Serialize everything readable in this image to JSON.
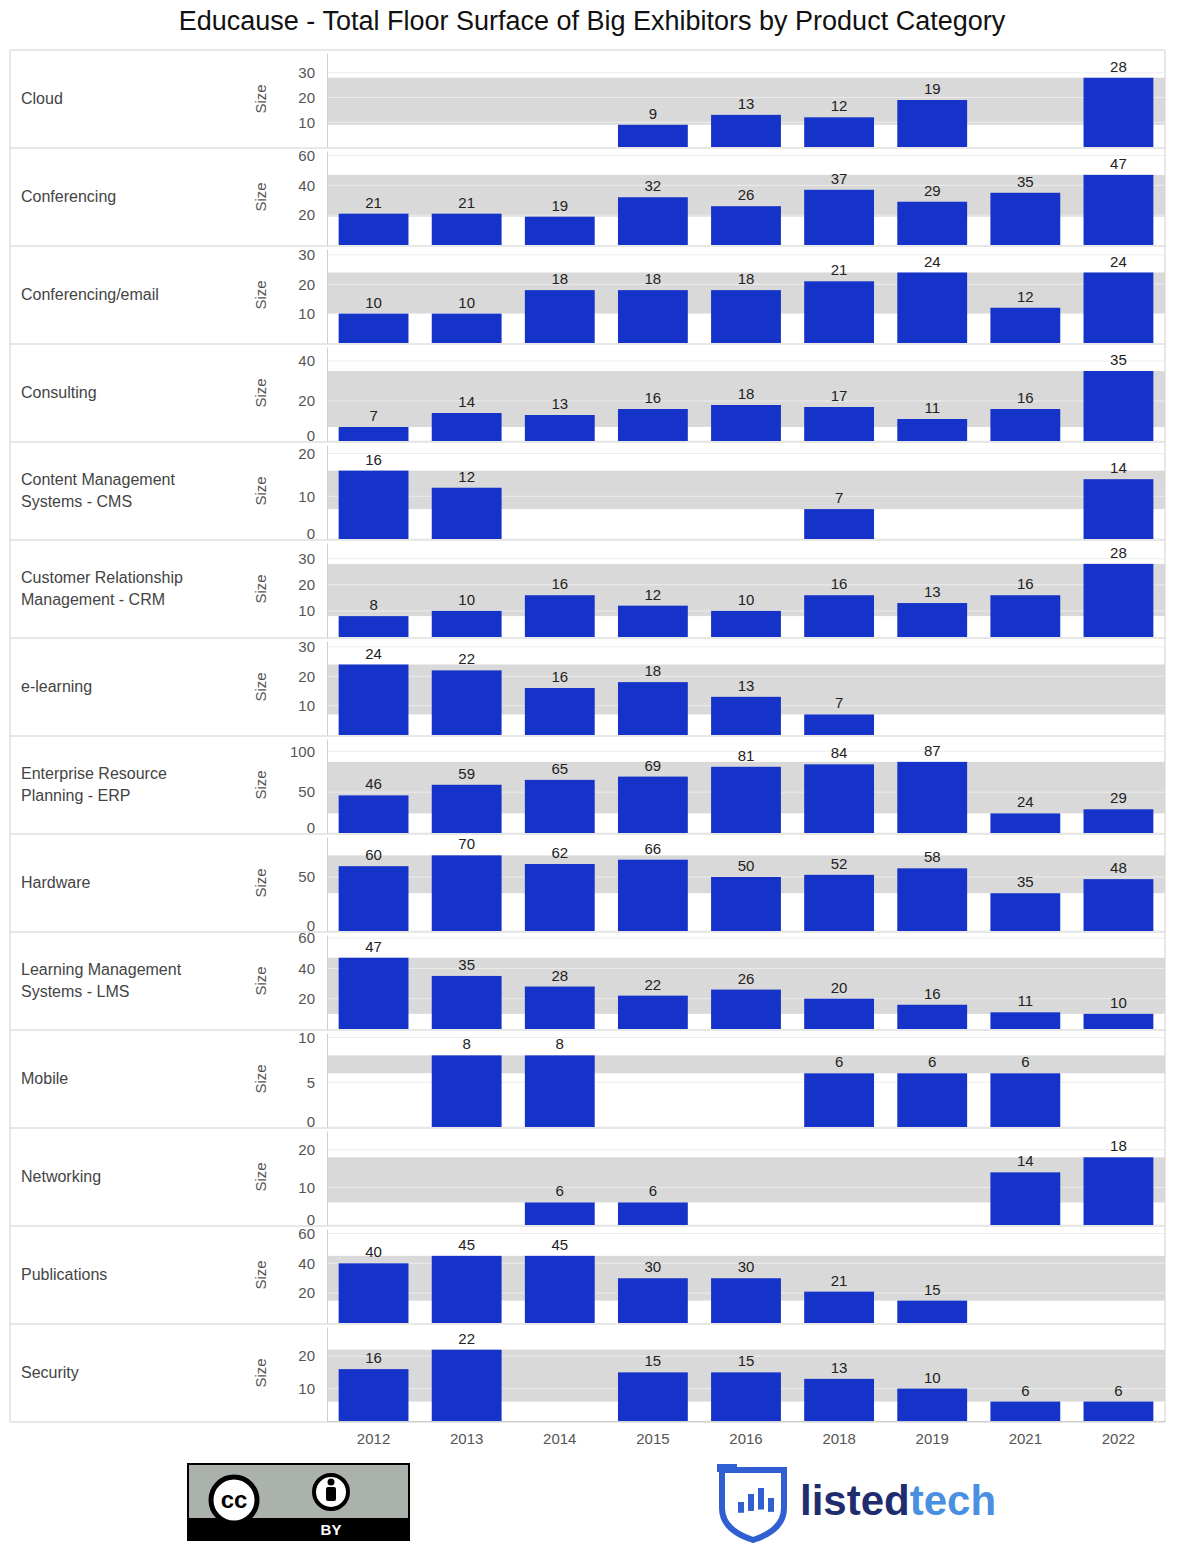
{
  "title": "Educause - Total Floor Surface of Big Exhibitors by Product Category",
  "chart_data": [
    {
      "type": "bar",
      "title": "Cloud",
      "ylabel": "Size",
      "categories": [
        "2012",
        "2013",
        "2014",
        "2015",
        "2016",
        "2018",
        "2019",
        "2021",
        "2022"
      ],
      "values": [
        null,
        null,
        null,
        9,
        13,
        12,
        19,
        null,
        28
      ],
      "color": "#1533c8",
      "ylim": [
        0,
        38
      ],
      "yticks": [
        10,
        20,
        30
      ],
      "data_labels": true,
      "grid": true,
      "tick_labels": "y"
    },
    {
      "type": "bar",
      "title": "Conferencing",
      "ylabel": "Size",
      "categories": [
        "2012",
        "2013",
        "2014",
        "2015",
        "2016",
        "2018",
        "2019",
        "2021",
        "2022"
      ],
      "values": [
        21,
        21,
        19,
        32,
        26,
        37,
        29,
        35,
        47
      ],
      "color": "#1533c8",
      "ylim": [
        0,
        63
      ],
      "yticks": [
        20,
        40,
        60
      ],
      "data_labels": true,
      "grid": true,
      "tick_labels": "y"
    },
    {
      "type": "bar",
      "title": "Conferencing/email",
      "ylabel": "Size",
      "categories": [
        "2012",
        "2013",
        "2014",
        "2015",
        "2016",
        "2018",
        "2019",
        "2021",
        "2022"
      ],
      "values": [
        10,
        10,
        18,
        18,
        18,
        21,
        24,
        12,
        24
      ],
      "color": "#1533c8",
      "ylim": [
        0,
        32
      ],
      "yticks": [
        10,
        20,
        30
      ],
      "data_labels": true,
      "grid": true,
      "tick_labels": "y"
    },
    {
      "type": "bar",
      "title": "Consulting",
      "ylabel": "Size",
      "categories": [
        "2012",
        "2013",
        "2014",
        "2015",
        "2016",
        "2018",
        "2019",
        "2021",
        "2022"
      ],
      "values": [
        7,
        14,
        13,
        16,
        18,
        17,
        11,
        16,
        35
      ],
      "color": "#1533c8",
      "ylim": [
        0,
        47
      ],
      "yticks": [
        0,
        20,
        40
      ],
      "data_labels": true,
      "grid": true,
      "tick_labels": "y"
    },
    {
      "type": "bar",
      "title": "Content Management Systems - CMS",
      "ylabel": "Size",
      "categories": [
        "2012",
        "2013",
        "2014",
        "2015",
        "2016",
        "2018",
        "2019",
        "2021",
        "2022"
      ],
      "values": [
        16,
        12,
        null,
        null,
        null,
        7,
        null,
        null,
        14
      ],
      "color": "#1533c8",
      "ylim": [
        0,
        22
      ],
      "yticks": [
        0,
        10,
        20
      ],
      "data_labels": true,
      "grid": true,
      "tick_labels": "y"
    },
    {
      "type": "bar",
      "title": "Customer Relationship Management - CRM",
      "ylabel": "Size",
      "categories": [
        "2012",
        "2013",
        "2014",
        "2015",
        "2016",
        "2018",
        "2019",
        "2021",
        "2022"
      ],
      "values": [
        8,
        10,
        16,
        12,
        10,
        16,
        13,
        16,
        28
      ],
      "color": "#1533c8",
      "ylim": [
        0,
        36
      ],
      "yticks": [
        10,
        20,
        30
      ],
      "data_labels": true,
      "grid": true,
      "tick_labels": "y"
    },
    {
      "type": "bar",
      "title": "e-learning",
      "ylabel": "Size",
      "categories": [
        "2012",
        "2013",
        "2014",
        "2015",
        "2016",
        "2018",
        "2019",
        "2021",
        "2022"
      ],
      "values": [
        24,
        22,
        16,
        18,
        13,
        7,
        null,
        null,
        null
      ],
      "color": "#1533c8",
      "ylim": [
        0,
        32
      ],
      "yticks": [
        10,
        20,
        30
      ],
      "data_labels": true,
      "grid": true,
      "tick_labels": "y"
    },
    {
      "type": "bar",
      "title": "Enterprise Resource Planning - ERP",
      "ylabel": "Size",
      "categories": [
        "2012",
        "2013",
        "2014",
        "2015",
        "2016",
        "2018",
        "2019",
        "2021",
        "2022"
      ],
      "values": [
        46,
        59,
        65,
        69,
        81,
        84,
        87,
        24,
        29
      ],
      "color": "#1533c8",
      "ylim": [
        0,
        115
      ],
      "yticks": [
        0,
        50,
        100
      ],
      "data_labels": true,
      "grid": true,
      "tick_labels": "y"
    },
    {
      "type": "bar",
      "title": "Hardware",
      "ylabel": "Size",
      "categories": [
        "2012",
        "2013",
        "2014",
        "2015",
        "2016",
        "2018",
        "2019",
        "2021",
        "2022"
      ],
      "values": [
        60,
        70,
        62,
        66,
        50,
        52,
        58,
        35,
        48
      ],
      "color": "#1533c8",
      "ylim": [
        0,
        87
      ],
      "yticks": [
        0,
        50
      ],
      "data_labels": true,
      "grid": true,
      "tick_labels": "y"
    },
    {
      "type": "bar",
      "title": "Learning Management Systems - LMS",
      "ylabel": "Size",
      "categories": [
        "2012",
        "2013",
        "2014",
        "2015",
        "2016",
        "2018",
        "2019",
        "2021",
        "2022"
      ],
      "values": [
        47,
        35,
        28,
        22,
        26,
        20,
        16,
        11,
        10
      ],
      "color": "#1533c8",
      "ylim": [
        0,
        62
      ],
      "yticks": [
        20,
        40,
        60
      ],
      "data_labels": true,
      "grid": true,
      "tick_labels": "y"
    },
    {
      "type": "bar",
      "title": "Mobile",
      "ylabel": "Size",
      "categories": [
        "2012",
        "2013",
        "2014",
        "2015",
        "2016",
        "2018",
        "2019",
        "2021",
        "2022"
      ],
      "values": [
        null,
        8,
        8,
        null,
        null,
        6,
        6,
        6,
        null
      ],
      "color": "#1533c8",
      "ylim": [
        0,
        10.5
      ],
      "yticks": [
        0,
        5,
        10
      ],
      "data_labels": true,
      "grid": true,
      "tick_labels": "y"
    },
    {
      "type": "bar",
      "title": "Networking",
      "ylabel": "Size",
      "categories": [
        "2012",
        "2013",
        "2014",
        "2015",
        "2016",
        "2018",
        "2019",
        "2021",
        "2022"
      ],
      "values": [
        null,
        null,
        6,
        6,
        null,
        null,
        null,
        14,
        18
      ],
      "color": "#1533c8",
      "ylim": [
        0,
        25
      ],
      "yticks": [
        0,
        10,
        20
      ],
      "data_labels": true,
      "grid": true,
      "tick_labels": "y"
    },
    {
      "type": "bar",
      "title": "Publications",
      "ylabel": "Size",
      "categories": [
        "2012",
        "2013",
        "2014",
        "2015",
        "2016",
        "2018",
        "2019",
        "2021",
        "2022"
      ],
      "values": [
        40,
        45,
        45,
        30,
        30,
        21,
        15,
        null,
        null
      ],
      "color": "#1533c8",
      "ylim": [
        0,
        63
      ],
      "yticks": [
        20,
        40,
        60
      ],
      "data_labels": true,
      "grid": true,
      "tick_labels": "y"
    },
    {
      "type": "bar",
      "title": "Security",
      "ylabel": "Size",
      "categories": [
        "2012",
        "2013",
        "2014",
        "2015",
        "2016",
        "2018",
        "2019",
        "2021",
        "2022"
      ],
      "values": [
        16,
        22,
        null,
        15,
        15,
        13,
        10,
        6,
        6
      ],
      "color": "#1533c8",
      "ylim": [
        0,
        29
      ],
      "yticks": [
        10,
        20
      ],
      "data_labels": true,
      "grid": true,
      "tick_labels": true
    }
  ],
  "credits": {
    "license_icon": "cc",
    "license": "BY",
    "brand": [
      "listed",
      "tech"
    ]
  }
}
